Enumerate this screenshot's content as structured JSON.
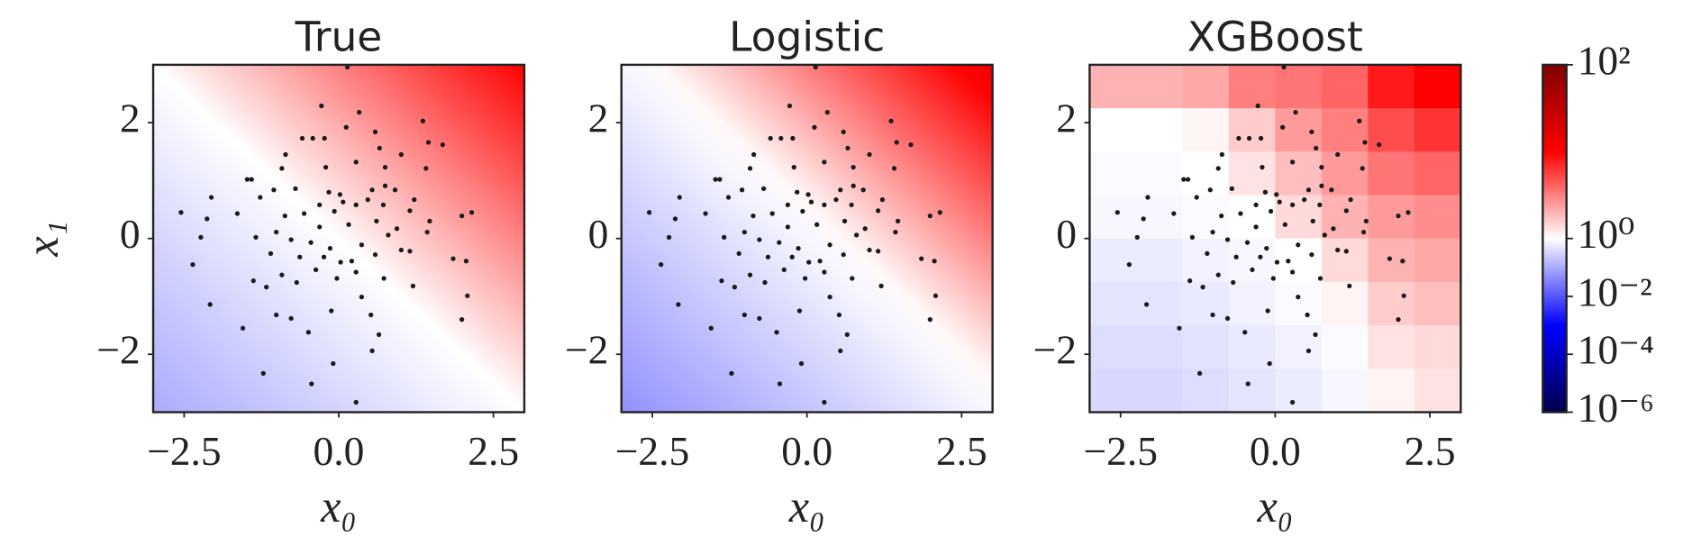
{
  "chart_data": {
    "type": "scatter",
    "xlabel": "x₀",
    "ylabel": "x₁",
    "xlim": [
      -3,
      3
    ],
    "ylim": [
      -3,
      3
    ],
    "xticks": [
      {
        "value": -2.5,
        "label": "−2.5"
      },
      {
        "value": 0,
        "label": "0.0"
      },
      2.5
    ],
    "yticks": [
      {
        "value": -2,
        "label": "−2"
      },
      0,
      2
    ],
    "point_color": "#1a1a1a",
    "x": [
      0.14,
      -0.28,
      0.33,
      1.36,
      -0.59,
      -0.42,
      -0.23,
      0.12,
      0.59,
      1.45,
      1.68,
      0.66,
      -0.86,
      1.01,
      -0.92,
      -1.48,
      -1.41,
      1.41,
      -0.21,
      0.28,
      0.75,
      -1.05,
      -1.27,
      -2.06,
      -0.7,
      -0.16,
      0.02,
      0.54,
      0.75,
      0.91,
      1.22,
      -0.31,
      0.07,
      0.28,
      0.47,
      0.72,
      -0.56,
      -0.07,
      -2.55,
      -1.64,
      -0.87,
      1.15,
      1.99,
      2.15,
      -2.13,
      0.61,
      1.47,
      -0.31,
      0.16,
      0.94,
      -1.34,
      -1.01,
      -0.77,
      -0.45,
      -0.14,
      0.37,
      0.8,
      1.43,
      -2.23,
      1.01,
      1.15,
      -1.1,
      -0.63,
      -0.24,
      0.03,
      0.21,
      0.59,
      -2.36,
      1.85,
      2.06,
      -0.92,
      -0.37,
      -0.03,
      0.28,
      -1.38,
      -1.17,
      -0.68,
      0.73,
      -2.08,
      1.2,
      2.08,
      0.37,
      -1.01,
      -0.77,
      -0.12,
      0.52,
      -1.55,
      -0.49,
      1.99,
      0.65,
      0.54,
      -0.09,
      -1.22,
      -0.44,
      0.28
    ],
    "y": [
      2.96,
      2.29,
      2.18,
      2.03,
      1.73,
      1.73,
      1.73,
      1.92,
      1.84,
      1.66,
      1.62,
      1.56,
      1.45,
      1.45,
      1.21,
      1.02,
      1.02,
      1.21,
      1.23,
      1.32,
      1.23,
      0.84,
      0.71,
      0.71,
      0.86,
      0.8,
      0.76,
      0.84,
      0.91,
      0.84,
      0.67,
      0.58,
      0.63,
      0.58,
      0.67,
      0.58,
      0.43,
      0.47,
      0.45,
      0.43,
      0.39,
      0.48,
      0.39,
      0.45,
      0.34,
      0.3,
      0.3,
      0.2,
      0.24,
      0.17,
      0.02,
      0.11,
      -0.02,
      -0.07,
      -0.17,
      -0.11,
      0.06,
      0.11,
      0.02,
      -0.2,
      -0.22,
      -0.26,
      -0.32,
      -0.32,
      -0.41,
      -0.39,
      -0.28,
      -0.45,
      -0.35,
      -0.39,
      -0.63,
      -0.54,
      -0.69,
      -0.58,
      -0.73,
      -0.84,
      -0.76,
      -0.69,
      -1.14,
      -0.82,
      -0.99,
      -1.01,
      -1.32,
      -1.38,
      -1.25,
      -1.32,
      -1.55,
      -1.62,
      -1.4,
      -1.66,
      -1.94,
      -2.16,
      -2.33,
      -2.51,
      -2.83
    ],
    "panels": [
      {
        "title": "True",
        "background": {
          "kind": "linear",
          "corners": [
            [
              1,
              10
            ],
            [
              0.1,
              1
            ]
          ]
        }
      },
      {
        "title": "Logistic",
        "background": {
          "kind": "linear",
          "corners": [
            [
              0.8,
              13
            ],
            [
              0.05,
              0.8
            ]
          ]
        }
      },
      {
        "title": "XGBoost",
        "background": {
          "kind": "cells",
          "values": [
            [
              2,
              2,
              2.2,
              3.2,
              3.5,
              4,
              8,
              10
            ],
            [
              1,
              1,
              1.1,
              1.6,
              2.5,
              3.2,
              5,
              6.3
            ],
            [
              0.9,
              0.9,
              1,
              1.3,
              1.8,
              2.5,
              3.5,
              4
            ],
            [
              0.8,
              0.8,
              0.9,
              1,
              1.4,
              2,
              2.5,
              2.8
            ],
            [
              0.6,
              0.6,
              0.7,
              0.8,
              1,
              1.4,
              2,
              2.2
            ],
            [
              0.5,
              0.5,
              0.55,
              0.7,
              0.9,
              1.1,
              1.6,
              1.8
            ],
            [
              0.4,
              0.4,
              0.45,
              0.55,
              0.7,
              0.9,
              1.3,
              1.4
            ],
            [
              0.35,
              0.35,
              0.4,
              0.5,
              0.6,
              0.8,
              1.1,
              1.3
            ]
          ]
        }
      }
    ],
    "colorbar": {
      "cmap": "seismic",
      "log": true,
      "lim": [
        1e-06,
        100
      ],
      "vcenter": 1,
      "ticks": [
        {
          "value": 100,
          "label": "10²"
        },
        {
          "value": 1,
          "label": "10⁰"
        },
        {
          "value": 0.01,
          "label": "10⁻²"
        },
        {
          "value": 0.0001,
          "label": "10⁻⁴"
        },
        {
          "value": 1e-06,
          "label": "10⁻⁶"
        }
      ]
    }
  }
}
